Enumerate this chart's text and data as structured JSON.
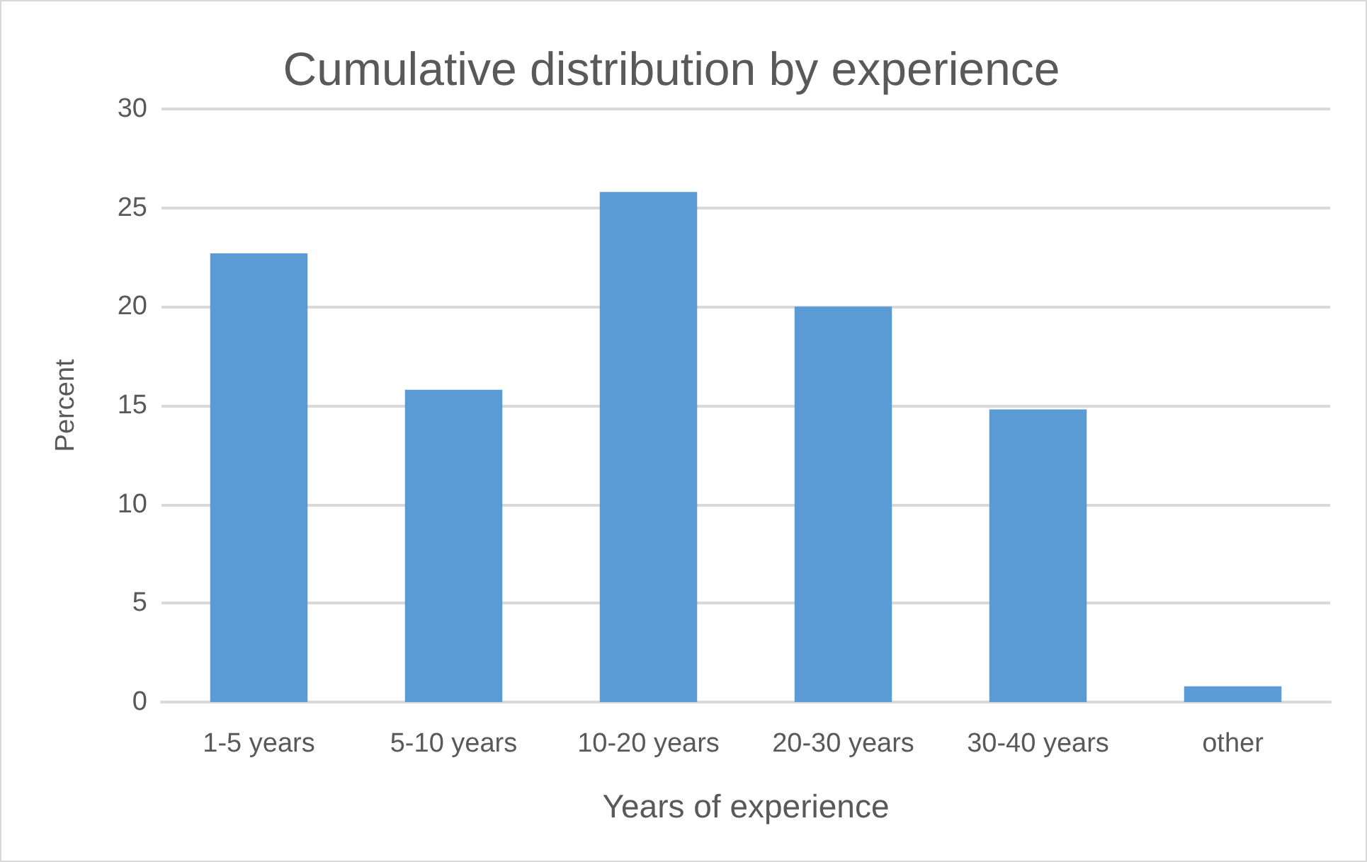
{
  "chart_data": {
    "type": "bar",
    "title": "Cumulative distribution by experience",
    "xlabel": "Years of experience",
    "ylabel": "Percent",
    "categories": [
      "1-5 years",
      "5-10 years",
      "10-20 years",
      "20-30 years",
      "30-40 years",
      "other"
    ],
    "values": [
      22.7,
      15.8,
      25.8,
      20.0,
      14.8,
      0.8
    ],
    "color": "#5b9bd5",
    "ylim": [
      0,
      30
    ],
    "yticks": [
      0,
      5,
      10,
      15,
      20,
      25,
      30
    ],
    "grid": "y"
  }
}
